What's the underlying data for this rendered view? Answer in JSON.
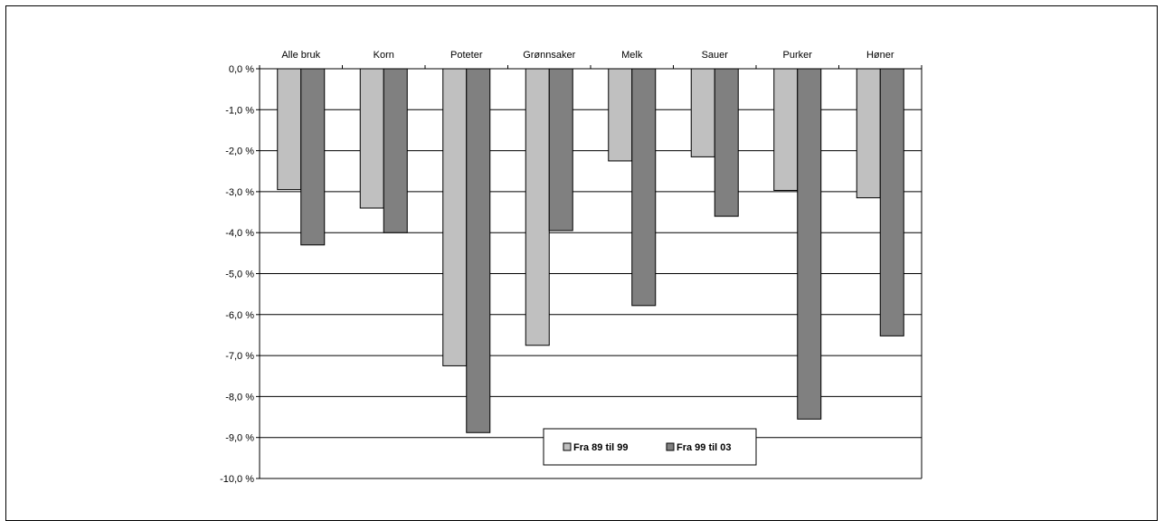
{
  "chart_data": {
    "type": "bar",
    "categories": [
      "Alle bruk",
      "Korn",
      "Poteter",
      "Grønnsaker",
      "Melk",
      "Sauer",
      "Purker",
      "Høner"
    ],
    "series": [
      {
        "name": "Fra 89 til 99",
        "color": "#c0c0c0",
        "values": [
          -2.95,
          -3.4,
          -7.25,
          -6.75,
          -2.25,
          -2.15,
          -2.97,
          -3.15
        ]
      },
      {
        "name": "Fra 99 til 03",
        "color": "#808080",
        "values": [
          -4.3,
          -4.0,
          -8.88,
          -3.95,
          -5.78,
          -3.6,
          -8.55,
          -6.52
        ]
      }
    ],
    "yticks": [
      0,
      -1,
      -2,
      -3,
      -4,
      -5,
      -6,
      -7,
      -8,
      -9,
      -10
    ],
    "ytick_labels": [
      "0,0 %",
      "-1,0 %",
      "-2,0 %",
      "-3,0 %",
      "-4,0 %",
      "-5,0 %",
      "-6,0 %",
      "-7,0 %",
      "-8,0 %",
      "-9,0 %",
      "-10,0 %"
    ],
    "ylim": [
      -10,
      0
    ],
    "grid": true,
    "legend_position": "bottom-center",
    "title": "",
    "xlabel": "",
    "ylabel": ""
  }
}
